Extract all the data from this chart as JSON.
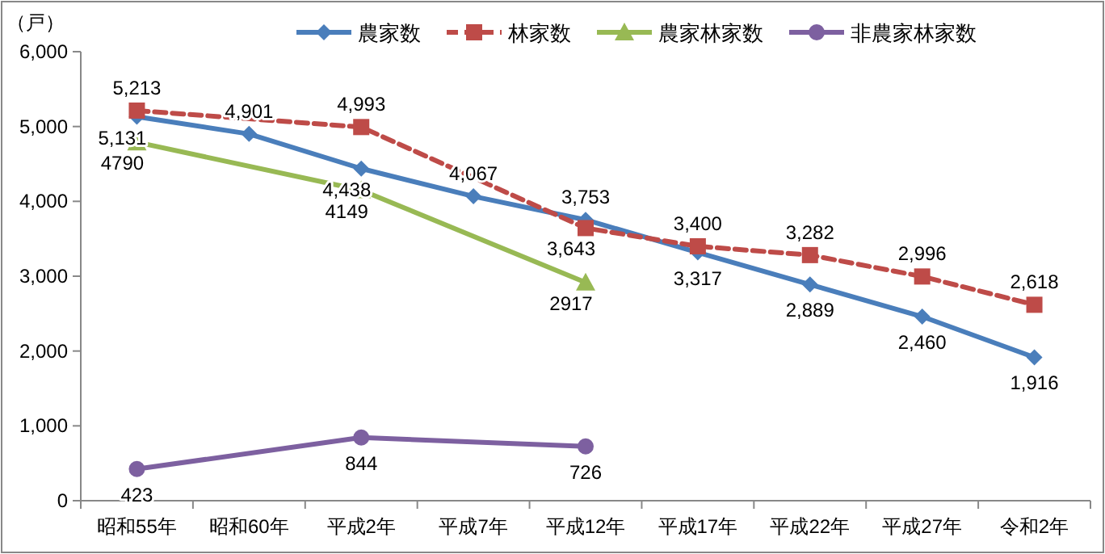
{
  "chart_data": {
    "type": "line",
    "ylabel": "（戸）",
    "categories": [
      "昭和55年",
      "昭和60年",
      "平成2年",
      "平成7年",
      "平成12年",
      "平成17年",
      "平成22年",
      "平成27年",
      "令和2年"
    ],
    "ylim": [
      0,
      6000
    ],
    "yticks": [
      {
        "value": 0,
        "label": "0"
      },
      {
        "value": 1000,
        "label": "1,000"
      },
      {
        "value": 2000,
        "label": "2,000"
      },
      {
        "value": 3000,
        "label": "3,000"
      },
      {
        "value": 4000,
        "label": "4,000"
      },
      {
        "value": 5000,
        "label": "5,000"
      },
      {
        "value": 6000,
        "label": "6,000"
      }
    ],
    "grid": false,
    "legend": "top",
    "series": [
      {
        "name": "農家数",
        "color": "#4a7ebb",
        "marker": "diamond",
        "line_style": "solid",
        "values": [
          5131,
          4901,
          4438,
          4067,
          3753,
          3317,
          2889,
          2460,
          1916
        ],
        "value_labels": [
          "5,131",
          "4,901",
          "4,438",
          "4,067",
          "3,753",
          "3,317",
          "2,889",
          "2,460",
          "1,916"
        ]
      },
      {
        "name": "林家数",
        "color": "#be4b48",
        "marker": "square",
        "line_style": "dashed",
        "values": [
          5213,
          null,
          4993,
          null,
          3643,
          3400,
          3282,
          2996,
          2618
        ],
        "value_labels": [
          "5,213",
          null,
          "4,993",
          null,
          "3,643",
          "3,400",
          "3,282",
          "2,996",
          "2,618"
        ]
      },
      {
        "name": "農家林家数",
        "color": "#98b954",
        "marker": "triangle",
        "line_style": "solid",
        "values": [
          4790,
          null,
          4149,
          null,
          2917,
          null,
          null,
          null,
          null
        ],
        "value_labels": [
          "4790",
          null,
          "4149",
          null,
          "2917",
          null,
          null,
          null,
          null
        ]
      },
      {
        "name": "非農家林家数",
        "color": "#7d60a0",
        "marker": "circle",
        "line_style": "solid",
        "values": [
          423,
          null,
          844,
          null,
          726,
          null,
          null,
          null,
          null
        ],
        "value_labels": [
          "423",
          null,
          "844",
          null,
          "726",
          null,
          null,
          null,
          null
        ]
      }
    ]
  }
}
